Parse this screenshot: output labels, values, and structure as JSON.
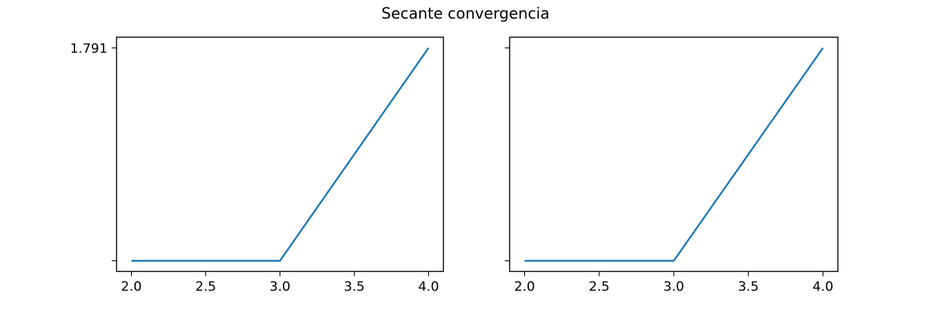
{
  "title": "Secante convergencia",
  "chart_data": [
    {
      "type": "line",
      "x": [
        2.0,
        3.0,
        4.0
      ],
      "series": [
        {
          "values": [
            1.02e-16,
            1.02e-16,
            1.791
          ],
          "color": "#1f77b4"
        }
      ],
      "xlim": [
        1.9,
        4.1
      ],
      "ylim": [
        -0.0896,
        1.881
      ],
      "xticks": [
        2.0,
        2.5,
        3.0,
        3.5,
        4.0
      ],
      "xtick_labels": [
        "2.0",
        "2.5",
        "3.0",
        "3.5",
        "4.0"
      ],
      "yticks": [
        1.02e-16,
        1.791
      ],
      "ytick_labels": [
        "",
        "1.791"
      ],
      "grid": false
    },
    {
      "type": "line",
      "x": [
        2.0,
        3.0,
        4.0
      ],
      "series": [
        {
          "values": [
            1.02e-16,
            1.02e-16,
            1.791
          ],
          "color": "#1f77b4"
        }
      ],
      "xlim": [
        1.9,
        4.1
      ],
      "ylim": [
        -0.0896,
        1.881
      ],
      "xticks": [
        2.0,
        2.5,
        3.0,
        3.5,
        4.0
      ],
      "xtick_labels": [
        "2.0",
        "2.5",
        "3.0",
        "3.5",
        "4.0"
      ],
      "yticks": [
        1.02e-16,
        1.791
      ],
      "ytick_labels": [
        "",
        ""
      ],
      "grid": false
    }
  ]
}
